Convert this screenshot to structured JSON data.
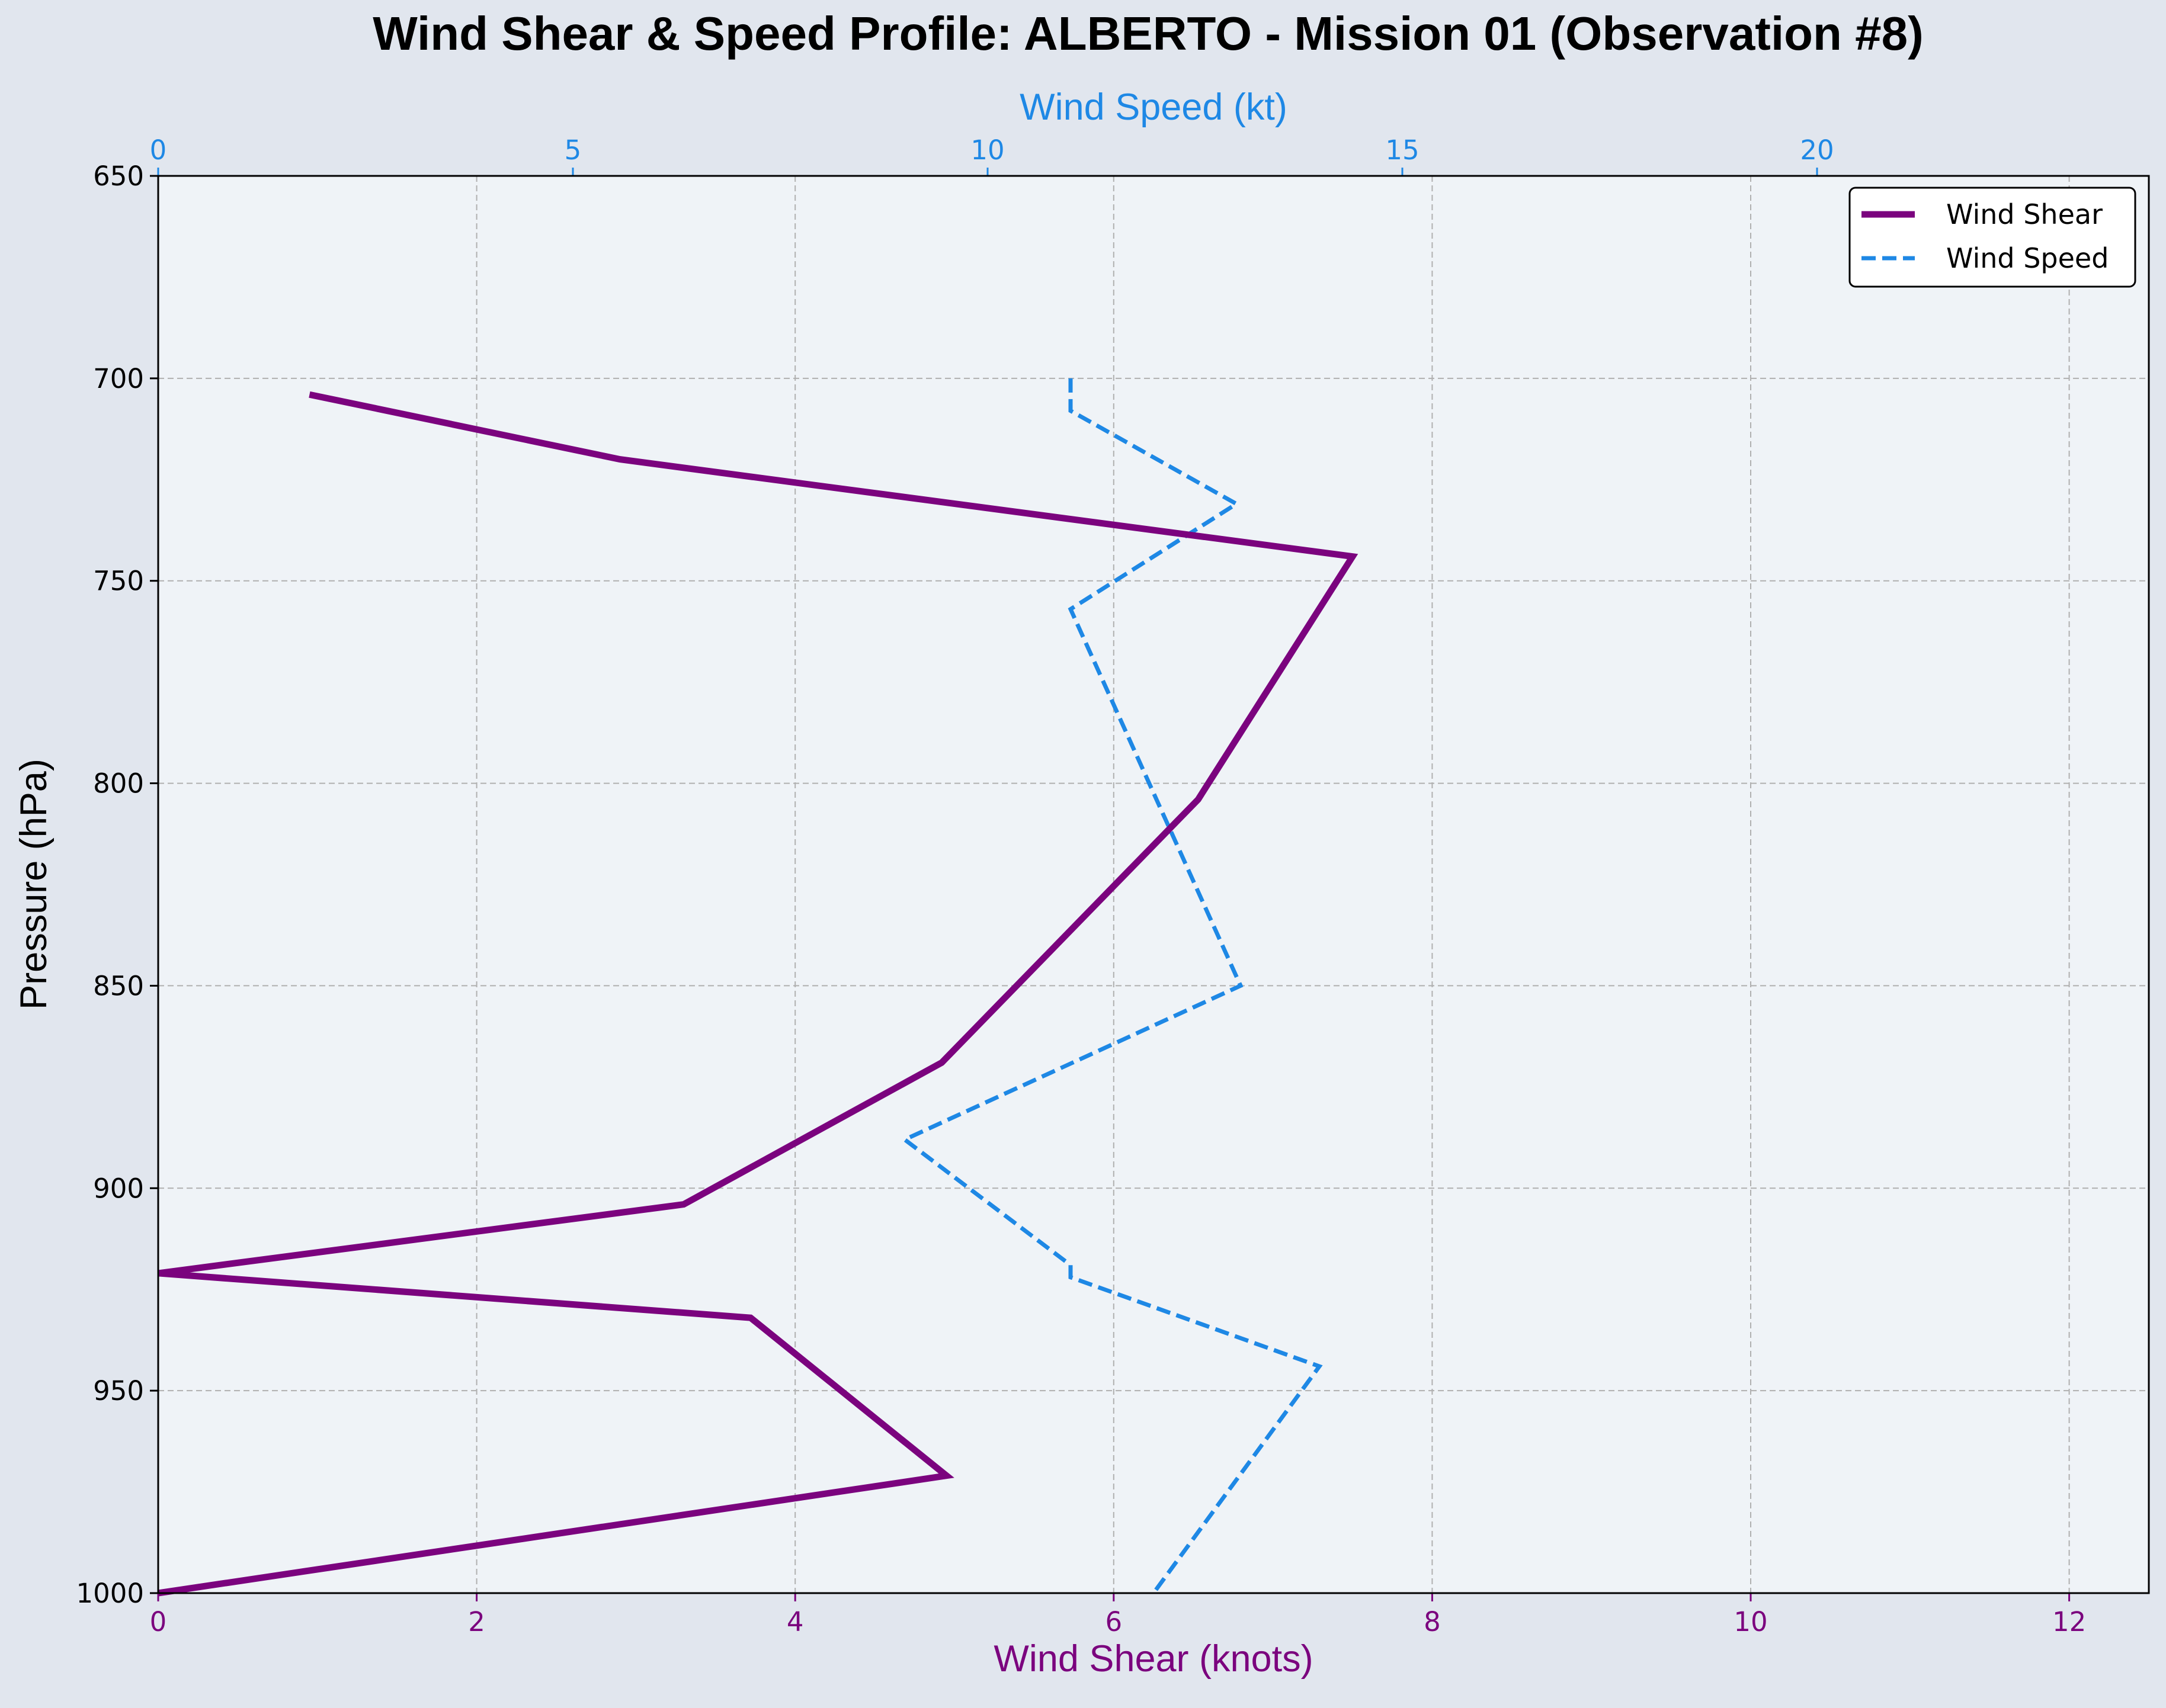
{
  "chart_data": {
    "type": "line",
    "title": "Wind Shear & Speed Profile: ALBERTO - Mission 01 (Observation #8)",
    "xlabel_bottom": "Wind Shear (knots)",
    "xlabel_top": "Wind Speed (kt)",
    "ylabel": "Pressure (hPa)",
    "y_axis": {
      "range": [
        650,
        1000
      ],
      "inverted": true,
      "ticks": [
        650,
        700,
        750,
        800,
        850,
        900,
        950,
        1000
      ]
    },
    "x_bottom_axis": {
      "range": [
        0,
        12.5
      ],
      "ticks": [
        0,
        2,
        4,
        6,
        8,
        10,
        12
      ]
    },
    "x_top_axis": {
      "range": [
        0,
        24
      ],
      "ticks": [
        0,
        5,
        10,
        15,
        20
      ]
    },
    "grid": true,
    "legend_position": "top-right",
    "series": [
      {
        "name": "Wind Shear",
        "axis": "bottom",
        "color": "#7b037e",
        "style": "solid",
        "points": [
          {
            "shear": 0.95,
            "pressure": 704
          },
          {
            "shear": 2.9,
            "pressure": 720
          },
          {
            "shear": 7.5,
            "pressure": 744
          },
          {
            "shear": 6.53,
            "pressure": 804
          },
          {
            "shear": 4.92,
            "pressure": 869
          },
          {
            "shear": 3.3,
            "pressure": 904
          },
          {
            "shear": 0.0,
            "pressure": 921
          },
          {
            "shear": 3.72,
            "pressure": 932
          },
          {
            "shear": 4.95,
            "pressure": 971
          },
          {
            "shear": 0.0,
            "pressure": 1000
          }
        ]
      },
      {
        "name": "Wind Speed",
        "axis": "top",
        "color": "#1e88e5",
        "style": "dashed",
        "points": [
          {
            "speed": 11.0,
            "pressure": 700
          },
          {
            "speed": 11.0,
            "pressure": 708
          },
          {
            "speed": 13.0,
            "pressure": 731
          },
          {
            "speed": 11.0,
            "pressure": 757
          },
          {
            "speed": 13.05,
            "pressure": 850
          },
          {
            "speed": 9.0,
            "pressure": 888
          },
          {
            "speed": 11.0,
            "pressure": 919
          },
          {
            "speed": 11.0,
            "pressure": 922
          },
          {
            "speed": 14.0,
            "pressure": 944
          },
          {
            "speed": 12.0,
            "pressure": 1000
          }
        ]
      }
    ]
  },
  "colors": {
    "figure_bg": "#e1e6ee",
    "plot_bg": "#eff3f7",
    "shear": "#7b037e",
    "speed": "#1e88e5",
    "grid": "#b0b0b0"
  }
}
